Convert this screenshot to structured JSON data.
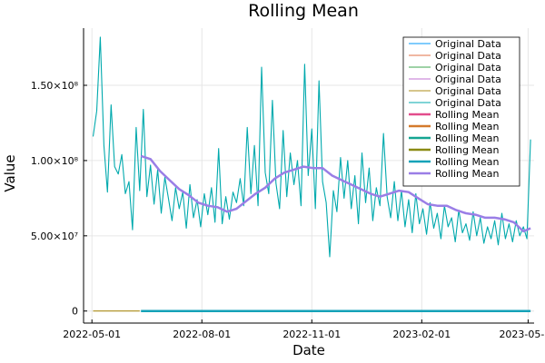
{
  "chart_data": {
    "type": "line",
    "title": "Rolling Mean",
    "xlabel": "Date",
    "ylabel": "Value",
    "x_range": [
      "2022-04-24",
      "2023-05-06"
    ],
    "ylim": [
      -8000000,
      188000000
    ],
    "x_ticks": [
      "2022-05-01",
      "2022-08-01",
      "2022-11-01",
      "2023-02-01",
      "2023-05-01"
    ],
    "y_ticks": [
      {
        "value": 0,
        "label": "0"
      },
      {
        "value": 50000000,
        "label": "5.00×10⁷"
      },
      {
        "value": 100000000,
        "label": "1.00×10⁸"
      },
      {
        "value": 150000000,
        "label": "1.50×10⁸"
      }
    ],
    "grid": true,
    "legend_position": "top-right",
    "series": [
      {
        "name": "Original Data",
        "color": "#009af9",
        "style": "thin",
        "points": []
      },
      {
        "name": "Original Data",
        "color": "#e26f46",
        "style": "thin",
        "points": []
      },
      {
        "name": "Original Data",
        "color": "#3da44d",
        "style": "thin",
        "points": []
      },
      {
        "name": "Original Data",
        "color": "#c271d2",
        "style": "thin",
        "points": []
      },
      {
        "name": "Original Data",
        "color": "#ac8e18",
        "style": "thin",
        "points": [
          [
            "2022-05-02",
            0
          ],
          [
            "2022-06-10",
            0
          ]
        ]
      },
      {
        "name": "Original Data",
        "color": "#00a9ad",
        "style": "thin",
        "points": [
          [
            "2022-05-02",
            116000000
          ],
          [
            "2022-05-05",
            133000000
          ],
          [
            "2022-05-08",
            182000000
          ],
          [
            "2022-05-11",
            110000000
          ],
          [
            "2022-05-14",
            79000000
          ],
          [
            "2022-05-17",
            137000000
          ],
          [
            "2022-05-20",
            96000000
          ],
          [
            "2022-05-23",
            91000000
          ],
          [
            "2022-05-26",
            104000000
          ],
          [
            "2022-05-29",
            78000000
          ],
          [
            "2022-06-01",
            86000000
          ],
          [
            "2022-06-04",
            54000000
          ],
          [
            "2022-06-07",
            122000000
          ],
          [
            "2022-06-10",
            80000000
          ],
          [
            "2022-06-13",
            134000000
          ],
          [
            "2022-06-16",
            76000000
          ],
          [
            "2022-06-19",
            97000000
          ],
          [
            "2022-06-22",
            71000000
          ],
          [
            "2022-06-25",
            94000000
          ],
          [
            "2022-06-28",
            65000000
          ],
          [
            "2022-07-01",
            89000000
          ],
          [
            "2022-07-04",
            75000000
          ],
          [
            "2022-07-07",
            60000000
          ],
          [
            "2022-07-10",
            82000000
          ],
          [
            "2022-07-13",
            68000000
          ],
          [
            "2022-07-16",
            79000000
          ],
          [
            "2022-07-19",
            55000000
          ],
          [
            "2022-07-22",
            84000000
          ],
          [
            "2022-07-25",
            62000000
          ],
          [
            "2022-07-28",
            74000000
          ],
          [
            "2022-07-31",
            56000000
          ],
          [
            "2022-08-03",
            78000000
          ],
          [
            "2022-08-06",
            64000000
          ],
          [
            "2022-08-09",
            82000000
          ],
          [
            "2022-08-12",
            59000000
          ],
          [
            "2022-08-15",
            108000000
          ],
          [
            "2022-08-18",
            58000000
          ],
          [
            "2022-08-21",
            76000000
          ],
          [
            "2022-08-24",
            61000000
          ],
          [
            "2022-08-27",
            79000000
          ],
          [
            "2022-08-30",
            72000000
          ],
          [
            "2022-09-02",
            88000000
          ],
          [
            "2022-09-05",
            70000000
          ],
          [
            "2022-09-08",
            122000000
          ],
          [
            "2022-09-11",
            78000000
          ],
          [
            "2022-09-14",
            110000000
          ],
          [
            "2022-09-17",
            70000000
          ],
          [
            "2022-09-20",
            162000000
          ],
          [
            "2022-09-23",
            92000000
          ],
          [
            "2022-09-26",
            78000000
          ],
          [
            "2022-09-29",
            140000000
          ],
          [
            "2022-10-02",
            85000000
          ],
          [
            "2022-10-05",
            68000000
          ],
          [
            "2022-10-08",
            120000000
          ],
          [
            "2022-10-11",
            76000000
          ],
          [
            "2022-10-14",
            105000000
          ],
          [
            "2022-10-17",
            84000000
          ],
          [
            "2022-10-20",
            100000000
          ],
          [
            "2022-10-23",
            70000000
          ],
          [
            "2022-10-26",
            164000000
          ],
          [
            "2022-10-29",
            90000000
          ],
          [
            "2022-11-01",
            121000000
          ],
          [
            "2022-11-04",
            68000000
          ],
          [
            "2022-11-07",
            153000000
          ],
          [
            "2022-11-10",
            86000000
          ],
          [
            "2022-11-13",
            72000000
          ],
          [
            "2022-11-16",
            36000000
          ],
          [
            "2022-11-19",
            80000000
          ],
          [
            "2022-11-22",
            66000000
          ],
          [
            "2022-11-25",
            102000000
          ],
          [
            "2022-11-28",
            75000000
          ],
          [
            "2022-12-01",
            100000000
          ],
          [
            "2022-12-04",
            68000000
          ],
          [
            "2022-12-07",
            90000000
          ],
          [
            "2022-12-10",
            58000000
          ],
          [
            "2022-12-13",
            105000000
          ],
          [
            "2022-12-16",
            72000000
          ],
          [
            "2022-12-19",
            95000000
          ],
          [
            "2022-12-22",
            60000000
          ],
          [
            "2022-12-25",
            82000000
          ],
          [
            "2022-12-28",
            70000000
          ],
          [
            "2022-12-31",
            118000000
          ],
          [
            "2023-01-03",
            76000000
          ],
          [
            "2023-01-06",
            62000000
          ],
          [
            "2023-01-09",
            86000000
          ],
          [
            "2023-01-12",
            60000000
          ],
          [
            "2023-01-15",
            80000000
          ],
          [
            "2023-01-18",
            56000000
          ],
          [
            "2023-01-21",
            74000000
          ],
          [
            "2023-01-24",
            52000000
          ],
          [
            "2023-01-27",
            78000000
          ],
          [
            "2023-01-30",
            58000000
          ],
          [
            "2023-02-02",
            68000000
          ],
          [
            "2023-02-05",
            51000000
          ],
          [
            "2023-02-08",
            72000000
          ],
          [
            "2023-02-11",
            55000000
          ],
          [
            "2023-02-14",
            65000000
          ],
          [
            "2023-02-17",
            48000000
          ],
          [
            "2023-02-20",
            70000000
          ],
          [
            "2023-02-23",
            56000000
          ],
          [
            "2023-02-26",
            62000000
          ],
          [
            "2023-03-01",
            46000000
          ],
          [
            "2023-03-04",
            67000000
          ],
          [
            "2023-03-07",
            52000000
          ],
          [
            "2023-03-10",
            58000000
          ],
          [
            "2023-03-13",
            47000000
          ],
          [
            "2023-03-16",
            66000000
          ],
          [
            "2023-03-19",
            50000000
          ],
          [
            "2023-03-22",
            62000000
          ],
          [
            "2023-03-25",
            45000000
          ],
          [
            "2023-03-28",
            56000000
          ],
          [
            "2023-03-31",
            48000000
          ],
          [
            "2023-04-03",
            60000000
          ],
          [
            "2023-04-06",
            44000000
          ],
          [
            "2023-04-09",
            65000000
          ],
          [
            "2023-04-12",
            48000000
          ],
          [
            "2023-04-15",
            58000000
          ],
          [
            "2023-04-18",
            46000000
          ],
          [
            "2023-04-21",
            60000000
          ],
          [
            "2023-04-24",
            50000000
          ],
          [
            "2023-04-27",
            56000000
          ],
          [
            "2023-04-30",
            48000000
          ],
          [
            "2023-05-03",
            114000000
          ]
        ]
      },
      {
        "name": "Rolling Mean",
        "color": "#e24c8c",
        "style": "thick",
        "points": []
      },
      {
        "name": "Rolling Mean",
        "color": "#d47a2c",
        "style": "thick",
        "points": []
      },
      {
        "name": "Rolling Mean",
        "color": "#14a592",
        "style": "thick",
        "points": []
      },
      {
        "name": "Rolling Mean",
        "color": "#8b8b14",
        "style": "thick",
        "points": []
      },
      {
        "name": "Rolling Mean",
        "color": "#14a2b8",
        "style": "thick",
        "points": [
          [
            "2022-06-11",
            0
          ],
          [
            "2023-05-03",
            0
          ]
        ]
      },
      {
        "name": "Rolling Mean",
        "color": "#9a7ee6",
        "style": "thick",
        "points": [
          [
            "2022-06-11",
            103000000
          ],
          [
            "2022-06-19",
            101000000
          ],
          [
            "2022-06-27",
            93000000
          ],
          [
            "2022-07-05",
            87000000
          ],
          [
            "2022-07-13",
            81000000
          ],
          [
            "2022-07-21",
            77000000
          ],
          [
            "2022-07-29",
            72000000
          ],
          [
            "2022-08-06",
            70000000
          ],
          [
            "2022-08-14",
            69000000
          ],
          [
            "2022-08-22",
            66000000
          ],
          [
            "2022-08-30",
            68000000
          ],
          [
            "2022-09-07",
            73000000
          ],
          [
            "2022-09-15",
            78000000
          ],
          [
            "2022-09-23",
            82000000
          ],
          [
            "2022-10-01",
            88000000
          ],
          [
            "2022-10-09",
            92000000
          ],
          [
            "2022-10-17",
            94000000
          ],
          [
            "2022-10-25",
            96000000
          ],
          [
            "2022-11-02",
            95000000
          ],
          [
            "2022-11-10",
            95000000
          ],
          [
            "2022-11-18",
            90000000
          ],
          [
            "2022-11-26",
            87000000
          ],
          [
            "2022-12-04",
            84000000
          ],
          [
            "2022-12-12",
            81000000
          ],
          [
            "2022-12-20",
            78000000
          ],
          [
            "2022-12-28",
            76000000
          ],
          [
            "2023-01-05",
            78000000
          ],
          [
            "2023-01-13",
            80000000
          ],
          [
            "2023-01-21",
            79000000
          ],
          [
            "2023-01-29",
            75000000
          ],
          [
            "2023-02-06",
            71000000
          ],
          [
            "2023-02-14",
            70000000
          ],
          [
            "2023-02-22",
            70000000
          ],
          [
            "2023-03-02",
            67000000
          ],
          [
            "2023-03-10",
            65000000
          ],
          [
            "2023-03-18",
            64000000
          ],
          [
            "2023-03-26",
            62000000
          ],
          [
            "2023-04-03",
            62000000
          ],
          [
            "2023-04-11",
            61000000
          ],
          [
            "2023-04-19",
            59000000
          ],
          [
            "2023-04-27",
            53000000
          ],
          [
            "2023-05-03",
            55000000
          ]
        ]
      }
    ]
  }
}
